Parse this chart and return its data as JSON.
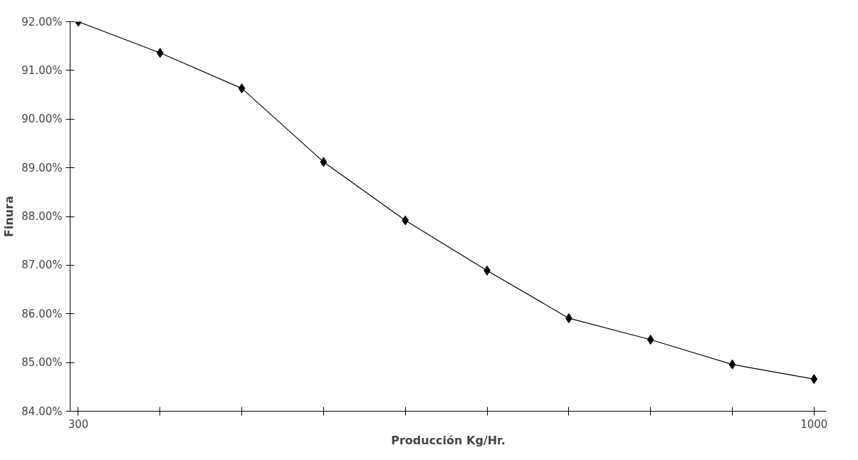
{
  "chart_data": {
    "type": "line",
    "xlabel": "Producción Kg/Hr.",
    "ylabel": "Finura",
    "categories": [
      "300",
      null,
      null,
      null,
      null,
      null,
      null,
      null,
      null,
      "1000"
    ],
    "values": [
      92.0,
      91.36,
      90.63,
      89.12,
      87.92,
      86.89,
      85.91,
      85.47,
      84.96,
      84.66
    ],
    "color": "#000000",
    "marker": "diamond",
    "line_style": "solid",
    "ylim": [
      84,
      92
    ],
    "yticks": [
      {
        "value": 84,
        "label": "84.00%"
      },
      {
        "value": 85,
        "label": "85.00%"
      },
      {
        "value": 86,
        "label": "86.00%"
      },
      {
        "value": 87,
        "label": "87.00%"
      },
      {
        "value": 88,
        "label": "88.00%"
      },
      {
        "value": 89,
        "label": "89.00%"
      },
      {
        "value": 90,
        "label": "90.00%"
      },
      {
        "value": 91,
        "label": "91.00%"
      },
      {
        "value": 92,
        "label": "92.00%"
      }
    ],
    "grid": false
  }
}
